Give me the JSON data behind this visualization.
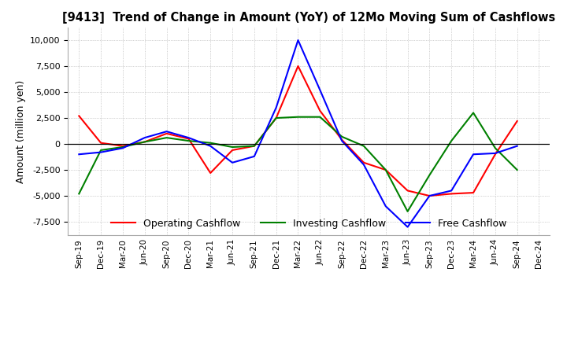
{
  "title": "[9413]  Trend of Change in Amount (YoY) of 12Mo Moving Sum of Cashflows",
  "ylabel": "Amount (million yen)",
  "ylim": [
    -8800,
    11200
  ],
  "yticks": [
    -7500,
    -5000,
    -2500,
    0,
    2500,
    5000,
    7500,
    10000
  ],
  "x_labels": [
    "Sep-19",
    "Dec-19",
    "Mar-20",
    "Jun-20",
    "Sep-20",
    "Dec-20",
    "Mar-21",
    "Jun-21",
    "Sep-21",
    "Dec-21",
    "Mar-22",
    "Jun-22",
    "Sep-22",
    "Dec-22",
    "Mar-23",
    "Jun-23",
    "Sep-23",
    "Dec-23",
    "Mar-24",
    "Jun-24",
    "Sep-24",
    "Dec-24"
  ],
  "operating": [
    2700,
    100,
    -200,
    200,
    1000,
    500,
    -2800,
    -600,
    -200,
    2500,
    7500,
    3200,
    400,
    -1800,
    -2500,
    -4500,
    -5000,
    -4800,
    -4700,
    -1000,
    2200,
    null
  ],
  "investing": [
    -4800,
    -600,
    -300,
    200,
    600,
    300,
    100,
    -300,
    -200,
    2500,
    2600,
    2600,
    700,
    -200,
    -2500,
    -6500,
    -3000,
    300,
    3000,
    -400,
    -2500,
    null
  ],
  "free": [
    -1000,
    -800,
    -400,
    600,
    1200,
    600,
    -200,
    -1800,
    -1200,
    3500,
    10000,
    5200,
    300,
    -2000,
    -6000,
    -8000,
    -5000,
    -4500,
    -1000,
    -900,
    -200,
    null
  ],
  "operating_color": "#ff0000",
  "investing_color": "#008000",
  "free_color": "#0000ff",
  "grid_color": "#aaaaaa",
  "background_color": "#ffffff"
}
